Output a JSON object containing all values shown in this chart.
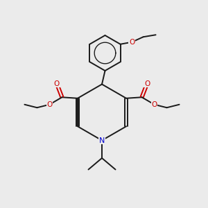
{
  "bg_color": "#ebebeb",
  "bond_color": "#1a1a1a",
  "N_color": "#0000cc",
  "O_color": "#cc0000",
  "lw": 1.4,
  "fontsize": 7.5,
  "xlim": [
    0,
    10
  ],
  "ylim": [
    0,
    10
  ]
}
